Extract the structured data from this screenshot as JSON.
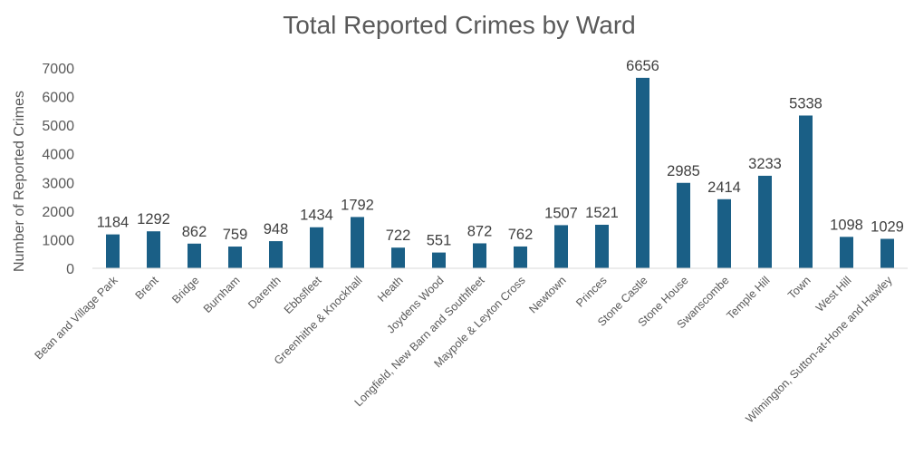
{
  "chart_data": {
    "type": "bar",
    "title": "Total Reported Crimes by Ward",
    "xlabel": "",
    "ylabel": "Number of Reported Crimes",
    "ylim": [
      0,
      7000
    ],
    "yticks": [
      0,
      1000,
      2000,
      3000,
      4000,
      5000,
      6000,
      7000
    ],
    "grid": false,
    "legend": "none",
    "bar_color": "#1a5f86",
    "categories": [
      "Bean and Village Park",
      "Brent",
      "Bridge",
      "Burnham",
      "Darenth",
      "Ebbsfleet",
      "Greenhithe & Knockhall",
      "Heath",
      "Joydens Wood",
      "Longfield, New Barn and Southfleet",
      "Maypole & Leyton Cross",
      "Newtown",
      "Princes",
      "Stone Castle",
      "Stone House",
      "Swanscombe",
      "Temple Hill",
      "Town",
      "West Hill",
      "Wilmington, Sutton-at-Hone and Hawley"
    ],
    "values": [
      1184,
      1292,
      862,
      759,
      948,
      1434,
      1792,
      722,
      551,
      872,
      762,
      1507,
      1521,
      6656,
      2985,
      2414,
      3233,
      5338,
      1098,
      1029
    ]
  }
}
